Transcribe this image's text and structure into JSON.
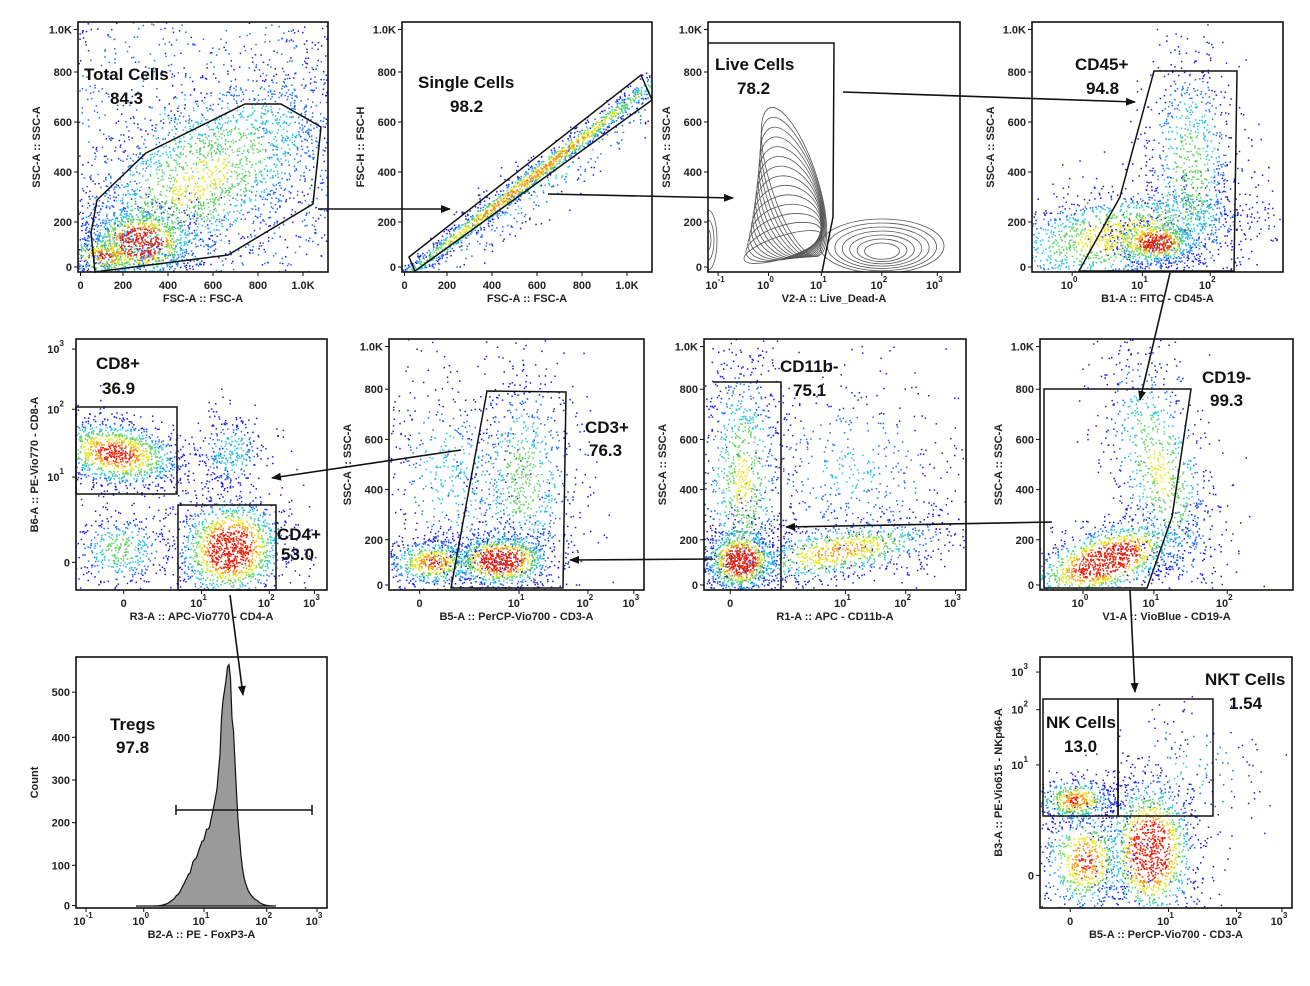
{
  "colors": {
    "low_density": "#1a1adc",
    "mid_density": "#5fd35f",
    "high_density": "#e8200c",
    "histogram_fill": "#9a9a9a",
    "gate_line": "#111111"
  },
  "chart_data": [
    {
      "type": "scatter",
      "xlabel": "FSC-A :: FSC-A",
      "ylabel": "SSC-A :: SSC-A",
      "x_ticks": [
        {
          "b": "0"
        },
        {
          "b": "200"
        },
        {
          "b": "400"
        },
        {
          "b": "600"
        },
        {
          "b": "800"
        },
        {
          "b": "1.0K"
        }
      ],
      "y_ticks": [
        {
          "b": "0"
        },
        {
          "b": "200"
        },
        {
          "b": "400"
        },
        {
          "b": "600"
        },
        {
          "b": "800"
        },
        {
          "b": "1.0K"
        }
      ],
      "xlim": [
        0,
        1100
      ],
      "ylim": [
        0,
        1050
      ],
      "gates": [
        {
          "name": "Total Cells",
          "percent": "84.3"
        }
      ]
    },
    {
      "type": "scatter",
      "xlabel": "FSC-A :: FSC-A",
      "ylabel": "FSC-H :: FSC-H",
      "x_ticks": [
        {
          "b": "0"
        },
        {
          "b": "200"
        },
        {
          "b": "400"
        },
        {
          "b": "600"
        },
        {
          "b": "800"
        },
        {
          "b": "1.0K"
        }
      ],
      "y_ticks": [
        {
          "b": "0"
        },
        {
          "b": "200"
        },
        {
          "b": "400"
        },
        {
          "b": "600"
        },
        {
          "b": "800"
        },
        {
          "b": "1.0K"
        }
      ],
      "xlim": [
        0,
        1100
      ],
      "ylim": [
        0,
        1050
      ],
      "gates": [
        {
          "name": "Single Cells",
          "percent": "98.2"
        }
      ]
    },
    {
      "type": "contour",
      "xlabel": "V2-A :: Live_Dead-A",
      "ylabel": "SSC-A :: SSC-A",
      "xscale": "log",
      "x_ticks": [
        {
          "b": "10",
          "e": "-1"
        },
        {
          "b": "10",
          "e": "0"
        },
        {
          "b": "10",
          "e": "1"
        },
        {
          "b": "10",
          "e": "2"
        },
        {
          "b": "10",
          "e": "3"
        }
      ],
      "y_ticks": [
        {
          "b": "0"
        },
        {
          "b": "200"
        },
        {
          "b": "400"
        },
        {
          "b": "600"
        },
        {
          "b": "800"
        },
        {
          "b": "1.0K"
        }
      ],
      "gates": [
        {
          "name": "Live Cells",
          "percent": "78.2"
        }
      ]
    },
    {
      "type": "scatter",
      "xlabel": "B1-A :: FITC - CD45-A",
      "ylabel": "SSC-A :: SSC-A",
      "xscale": "log",
      "x_ticks": [
        {
          "b": "10",
          "e": "0"
        },
        {
          "b": "10",
          "e": "1"
        },
        {
          "b": "10",
          "e": "2"
        }
      ],
      "y_ticks": [
        {
          "b": "0"
        },
        {
          "b": "200"
        },
        {
          "b": "400"
        },
        {
          "b": "600"
        },
        {
          "b": "800"
        },
        {
          "b": "1.0K"
        }
      ],
      "gates": [
        {
          "name": "CD45+",
          "percent": "94.8"
        }
      ]
    },
    {
      "type": "scatter",
      "xlabel": "R3-A :: APC-Vio770 - CD4-A",
      "ylabel": "B6-A :: PE-Vio770 - CD8-A",
      "xscale": "biexponential",
      "yscale": "biexponential",
      "x_ticks": [
        {
          "b": "0"
        },
        {
          "b": "10",
          "e": "1"
        },
        {
          "b": "10",
          "e": "2"
        },
        {
          "b": "10",
          "e": "3"
        }
      ],
      "y_ticks": [
        {
          "b": "0"
        },
        {
          "b": "10",
          "e": "1"
        },
        {
          "b": "10",
          "e": "2"
        },
        {
          "b": "10",
          "e": "3"
        }
      ],
      "gates": [
        {
          "name": "CD8+",
          "percent": "36.9"
        },
        {
          "name": "CD4+",
          "percent": "53.0"
        }
      ]
    },
    {
      "type": "scatter",
      "xlabel": "B5-A :: PerCP-Vio700 - CD3-A",
      "ylabel": "SSC-A :: SSC-A",
      "xscale": "biexponential",
      "x_ticks": [
        {
          "b": "0"
        },
        {
          "b": "10",
          "e": "1"
        },
        {
          "b": "10",
          "e": "2"
        },
        {
          "b": "10",
          "e": "3"
        }
      ],
      "y_ticks": [
        {
          "b": "0"
        },
        {
          "b": "200"
        },
        {
          "b": "400"
        },
        {
          "b": "600"
        },
        {
          "b": "800"
        },
        {
          "b": "1.0K"
        }
      ],
      "gates": [
        {
          "name": "CD3+",
          "percent": "76.3"
        }
      ]
    },
    {
      "type": "scatter",
      "xlabel": "R1-A :: APC - CD11b-A",
      "ylabel": "SSC-A :: SSC-A",
      "xscale": "biexponential",
      "x_ticks": [
        {
          "b": "0"
        },
        {
          "b": "10",
          "e": "1"
        },
        {
          "b": "10",
          "e": "2"
        },
        {
          "b": "10",
          "e": "3"
        }
      ],
      "y_ticks": [
        {
          "b": "0"
        },
        {
          "b": "200"
        },
        {
          "b": "400"
        },
        {
          "b": "600"
        },
        {
          "b": "800"
        },
        {
          "b": "1.0K"
        }
      ],
      "gates": [
        {
          "name": "CD11b-",
          "percent": "75.1"
        }
      ]
    },
    {
      "type": "scatter",
      "xlabel": "V1-A :: VioBlue - CD19-A",
      "ylabel": "SSC-A :: SSC-A",
      "xscale": "log",
      "x_ticks": [
        {
          "b": "10",
          "e": "0"
        },
        {
          "b": "10",
          "e": "1"
        },
        {
          "b": "10",
          "e": "2"
        }
      ],
      "y_ticks": [
        {
          "b": "0"
        },
        {
          "b": "200"
        },
        {
          "b": "400"
        },
        {
          "b": "600"
        },
        {
          "b": "800"
        },
        {
          "b": "1.0K"
        }
      ],
      "gates": [
        {
          "name": "CD19-",
          "percent": "99.3"
        }
      ]
    },
    {
      "type": "histogram",
      "xlabel": "B2-A :: PE - FoxP3-A",
      "ylabel": "Count",
      "xscale": "log",
      "x_ticks": [
        {
          "b": "10",
          "e": "-1"
        },
        {
          "b": "10",
          "e": "0"
        },
        {
          "b": "10",
          "e": "1"
        },
        {
          "b": "10",
          "e": "2"
        },
        {
          "b": "10",
          "e": "3"
        }
      ],
      "y_ticks": [
        {
          "b": "0"
        },
        {
          "b": "100"
        },
        {
          "b": "200"
        },
        {
          "b": "300"
        },
        {
          "b": "400"
        },
        {
          "b": "500"
        }
      ],
      "peak_count": 550,
      "peak_x": 20,
      "gates": [
        {
          "name": "Tregs",
          "percent": "97.8"
        }
      ]
    },
    {
      "type": "scatter",
      "xlabel": "B5-A :: PerCP-Vio700 - CD3-A",
      "ylabel": "B3-A :: PE-Vio615 - NKp46-A",
      "xscale": "biexponential",
      "yscale": "biexponential",
      "x_ticks": [
        {
          "b": "0"
        },
        {
          "b": "10",
          "e": "1"
        },
        {
          "b": "10",
          "e": "2"
        },
        {
          "b": "10",
          "e": "3"
        }
      ],
      "y_ticks": [
        {
          "b": "0"
        },
        {
          "b": "10",
          "e": "1"
        },
        {
          "b": "10",
          "e": "2"
        },
        {
          "b": "10",
          "e": "3"
        }
      ],
      "gates": [
        {
          "name": "NK Cells",
          "percent": "13.0"
        },
        {
          "name": "NKT Cells",
          "percent": "1.54"
        }
      ]
    }
  ]
}
